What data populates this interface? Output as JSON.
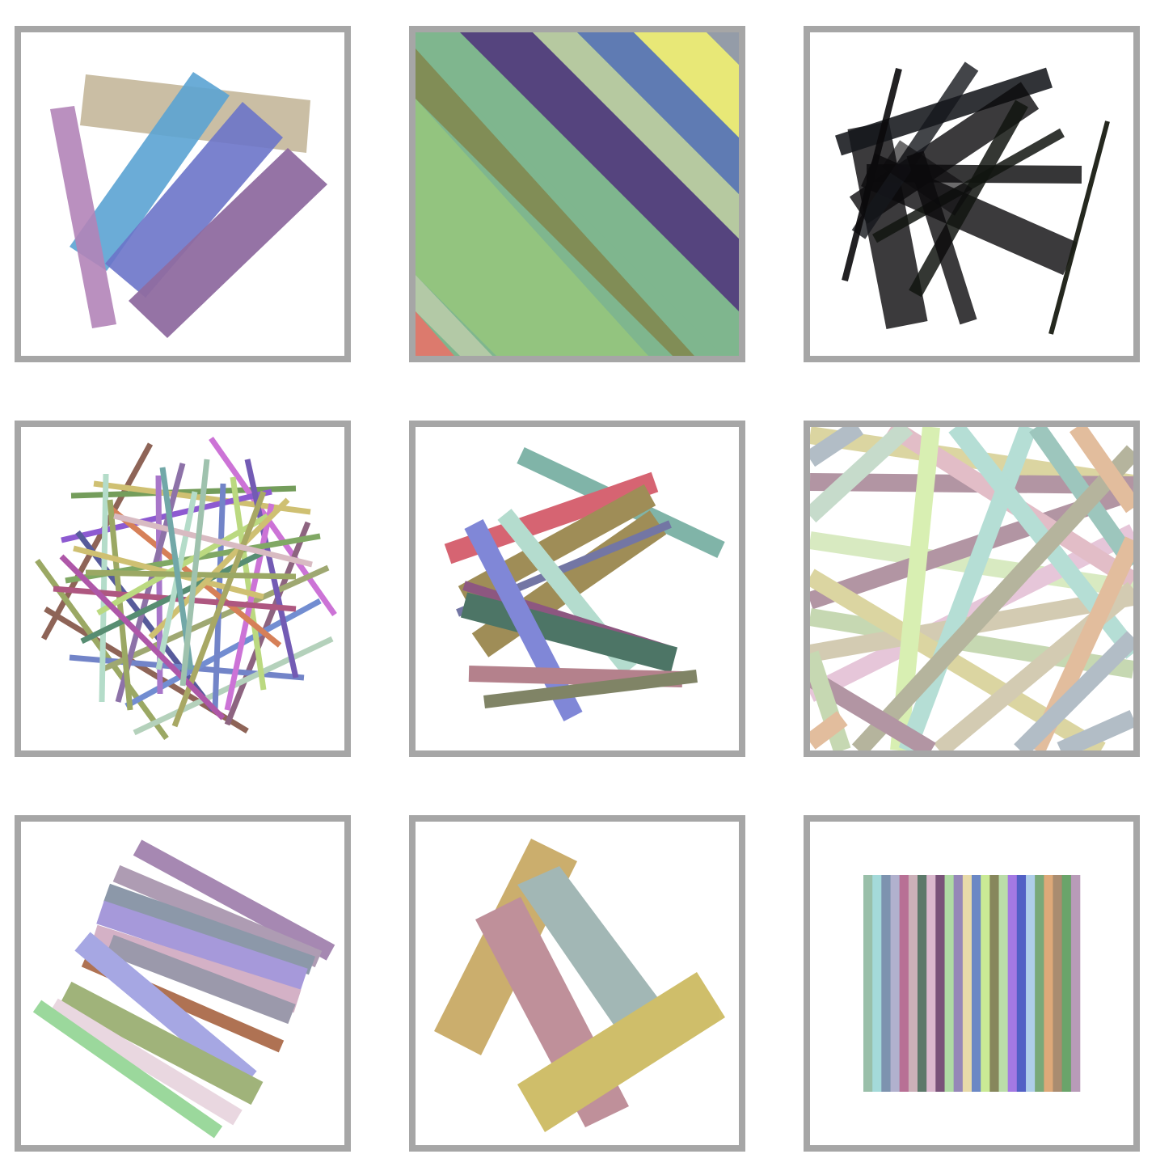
{
  "artwork": {
    "kind": "grid of abstract overlapping-stripe compositions",
    "panel_count": 9,
    "frame_color": "#a6a6a6",
    "background_color": "#ffffff",
    "panels": [
      {
        "id": "panel-1",
        "theme": "five translucent thick bars",
        "colors": [
          "#c4b79a",
          "#5ba3d3",
          "#6b74c9",
          "#b384b8",
          "#8f6ba0"
        ]
      },
      {
        "id": "panel-2",
        "theme": "diagonal color bands filling the square",
        "colors": [
          "#7fb68e",
          "#55447e",
          "#b6c9a0",
          "#5f7bb3",
          "#e8e877",
          "#949ca8",
          "#818d56",
          "#93c47f",
          "#b3c9a6",
          "#dc7a6d"
        ]
      },
      {
        "id": "panel-3",
        "theme": "black translucent bars radiating from a dense knot",
        "colors": [
          "#15171c",
          "#0b0a0c",
          "#111510",
          "#1a1d14"
        ]
      },
      {
        "id": "panel-4",
        "theme": "many thin multicolored sticks",
        "colors": [
          "#7b4a3a",
          "#7a3ec9",
          "#5c8c3f",
          "#c45bd0",
          "#3a3f8a",
          "#c7b65a",
          "#8fb8a0",
          "#5a6fbf",
          "#9a5f7c",
          "#b0d36a",
          "#d06a3c",
          "#a4a24a"
        ]
      },
      {
        "id": "panel-5",
        "theme": "medium translucent bars in mixed hues",
        "colors": [
          "#6aa89a",
          "#d04a5a",
          "#8f7a3a",
          "#6a73d1",
          "#a8d6c6",
          "#2f5e4c",
          "#a86c78",
          "#6a6f4c",
          "#7a3a6a",
          "#5b5f95"
        ]
      },
      {
        "id": "panel-6",
        "theme": "wide translucent stripes crossing edge to edge",
        "colors": [
          "#c4d985",
          "#8ecdc0",
          "#8a5e72",
          "#d9a9c6",
          "#a8c48a",
          "#bcb08a",
          "#d49a6a",
          "#8a9aa8",
          "#c9c070",
          "#8f8d6a"
        ]
      },
      {
        "id": "panel-7",
        "theme": "stacked parallel bars",
        "colors": [
          "#9a78a8",
          "#a38fa9",
          "#7d8a9e",
          "#9a8bd6",
          "#cfa7bf",
          "#a55f3c",
          "#9a9ce0",
          "#94a968",
          "#e6d2dc",
          "#8ed38f",
          "#8e8ca0"
        ]
      },
      {
        "id": "panel-8",
        "theme": "four broad overlapping bars",
        "colors": [
          "#c4a35a",
          "#96aeab",
          "#b7818d",
          "#c9b656"
        ]
      },
      {
        "id": "panel-9",
        "theme": "block of vertical color stripes",
        "colors": [
          "#8eb8a0",
          "#9ad6d6",
          "#6f87a6",
          "#a9a9c9",
          "#b0608a",
          "#c7a7b0",
          "#4a6a5a",
          "#d6b0c8",
          "#6a3f6a",
          "#a6d69a",
          "#8a7ab0",
          "#e6d6a0",
          "#5b7bbf",
          "#c4e88a",
          "#7a7a4a",
          "#b4d9a0",
          "#9a6ae0",
          "#3f4fbf",
          "#a6c9e8",
          "#6aa06a",
          "#d9a06a",
          "#a08060",
          "#5a9a5a",
          "#b090b0"
        ]
      }
    ]
  }
}
